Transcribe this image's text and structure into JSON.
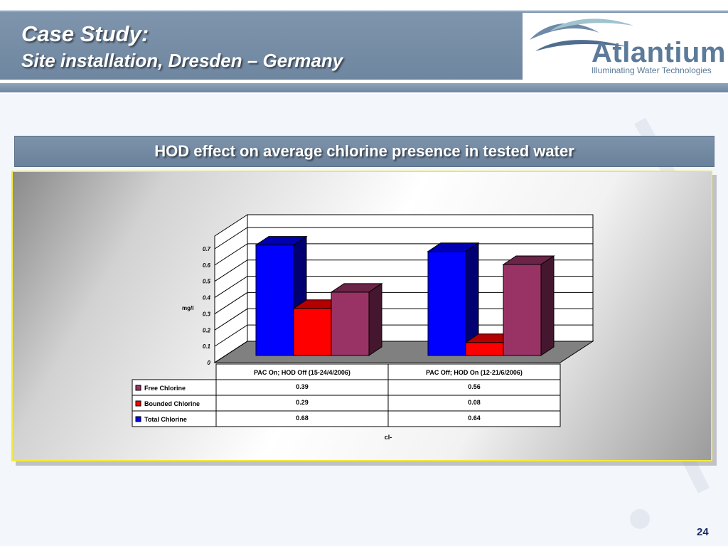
{
  "slide": {
    "title_line1": "Case Study:",
    "title_line2": "Site installation, Dresden – Germany",
    "page_number": "24"
  },
  "logo": {
    "name": "Atlantium",
    "tagline": "Illuminating Water Technologies"
  },
  "chart_data": {
    "type": "bar",
    "title": "HOD effect on average chlorine presence in tested water",
    "ylabel": "mg/l",
    "xlabel": "cl-",
    "ylim": [
      0,
      0.7
    ],
    "yticks": [
      "0",
      "0.1",
      "0.2",
      "0.3",
      "0.4",
      "0.5",
      "0.6",
      "0.7"
    ],
    "categories": [
      "PAC On; HOD Off (15-24/4/2006)",
      "PAC Off; HOD On (12-21/6/2006)"
    ],
    "series": [
      {
        "name": "Free Chlorine",
        "color": "#993366",
        "values": [
          0.39,
          0.56
        ],
        "labels": [
          "0.39",
          "0.56"
        ]
      },
      {
        "name": "Bounded Chlorine",
        "color": "#ff0000",
        "values": [
          0.29,
          0.08
        ],
        "labels": [
          "0.29",
          "0.08"
        ]
      },
      {
        "name": "Total Chlorine",
        "color": "#0000ff",
        "values": [
          0.68,
          0.64
        ],
        "labels": [
          "0.68",
          "0.64"
        ]
      }
    ],
    "legend_placement": "bottom-table",
    "grid": true
  }
}
